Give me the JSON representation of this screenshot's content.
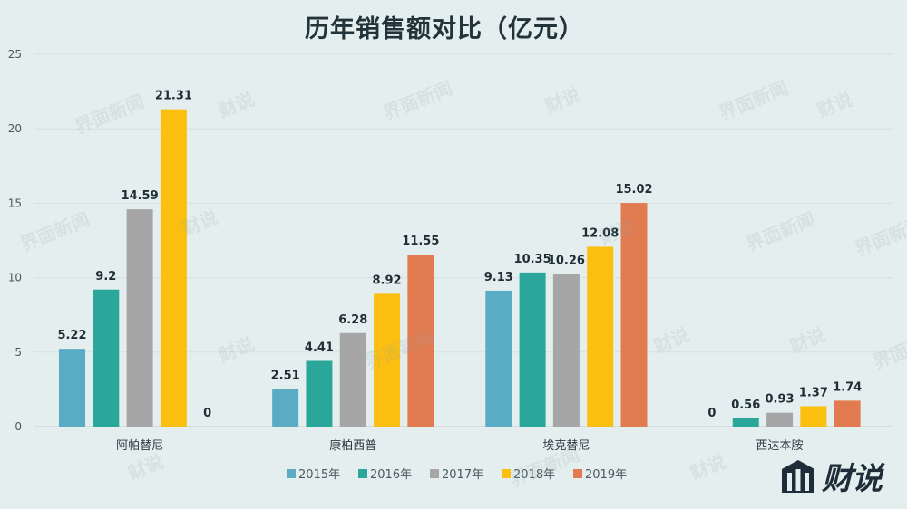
{
  "chart_data": {
    "type": "bar",
    "title": "历年销售额对比（亿元）",
    "categories": [
      "阿帕替尼",
      "康柏西普",
      "埃克替尼",
      "西达本胺"
    ],
    "series": [
      {
        "name": "2015年",
        "color": "#5aabc4",
        "values": [
          5.22,
          2.51,
          9.13,
          0
        ]
      },
      {
        "name": "2016年",
        "color": "#2aa69a",
        "values": [
          9.2,
          4.41,
          10.35,
          0.56
        ]
      },
      {
        "name": "2017年",
        "color": "#a6a6a6",
        "values": [
          14.59,
          6.28,
          10.26,
          0.93
        ]
      },
      {
        "name": "2018年",
        "color": "#fbbf10",
        "values": [
          21.31,
          8.92,
          12.08,
          1.37
        ]
      },
      {
        "name": "2019年",
        "color": "#e27b50",
        "values": [
          0,
          11.55,
          15.02,
          1.74
        ]
      }
    ],
    "value_labels": [
      [
        "5.22",
        "9.2",
        "14.59",
        "21.31",
        "0"
      ],
      [
        "2.51",
        "4.41",
        "6.28",
        "8.92",
        "11.55"
      ],
      [
        "9.13",
        "10.35",
        "10.26",
        "12.08",
        "15.02"
      ],
      [
        "0",
        "0.56",
        "0.93",
        "1.37",
        "1.74"
      ]
    ],
    "hidden_bars": [
      [
        0,
        4
      ],
      [
        3,
        0
      ]
    ],
    "ylim": [
      0,
      25
    ],
    "yticks": [
      0,
      5,
      10,
      15,
      20,
      25
    ],
    "grid": true,
    "legend": "bottom"
  },
  "branding": {
    "logo_text": "财说",
    "watermarks": [
      "界面新闻",
      "财说"
    ]
  }
}
